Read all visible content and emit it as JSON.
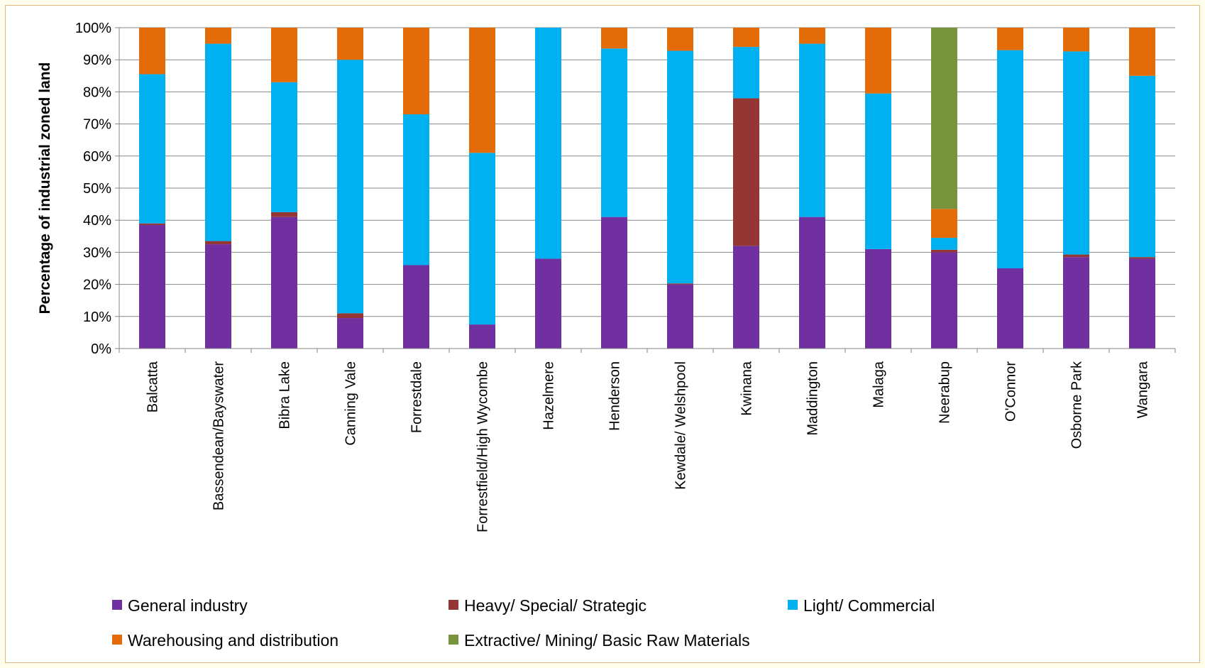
{
  "chart_data": {
    "type": "bar",
    "stacked": true,
    "title": "",
    "xlabel": "",
    "ylabel": "Percentage of industrial zoned land",
    "ylim": [
      0,
      100
    ],
    "yticks": [
      "0%",
      "10%",
      "20%",
      "30%",
      "40%",
      "50%",
      "60%",
      "70%",
      "80%",
      "90%",
      "100%"
    ],
    "grid": true,
    "legend_position": "bottom",
    "categories": [
      "Balcatta",
      "Bassendean/Bayswater",
      "Bibra Lake",
      "Canning Vale",
      "Forrestdale",
      "Forrestfield/High Wycombe",
      "Hazelmere",
      "Henderson",
      "Kewdale/ Welshpool",
      "Kwinana",
      "Maddington",
      "Malaga",
      "Neerabup",
      "O'Connor",
      "Osborne Park",
      "Wangara"
    ],
    "series": [
      {
        "name": "General industry",
        "color": "#7030A0",
        "values": [
          38.5,
          32.5,
          41,
          9.5,
          26,
          7.5,
          28,
          41,
          20,
          32,
          41,
          31,
          30,
          25,
          28.5,
          28
        ]
      },
      {
        "name": "Heavy/ Special/ Strategic",
        "color": "#943634",
        "values": [
          0.5,
          1,
          1.5,
          1.5,
          0,
          0,
          0,
          0,
          0.3,
          46,
          0,
          0,
          0.8,
          0,
          0.8,
          0.5
        ]
      },
      {
        "name": "Light/ Commercial",
        "color": "#00B0F0",
        "values": [
          46.5,
          61.5,
          40.5,
          79,
          47,
          53.5,
          72,
          52.5,
          72.5,
          16,
          54,
          48.5,
          3.7,
          68,
          63.3,
          56.5
        ]
      },
      {
        "name": "Warehousing and distribution",
        "color": "#E36C09",
        "values": [
          14.5,
          5,
          17,
          10,
          27,
          39,
          0,
          6.5,
          7.2,
          6,
          5,
          20.5,
          9,
          7,
          7.4,
          15
        ]
      },
      {
        "name": "Extractive/ Mining/ Basic Raw Materials",
        "color": "#77933C",
        "values": [
          0,
          0,
          0,
          0,
          0,
          0,
          0,
          0,
          0,
          0,
          0,
          0,
          56.5,
          0,
          0,
          0
        ]
      }
    ]
  }
}
